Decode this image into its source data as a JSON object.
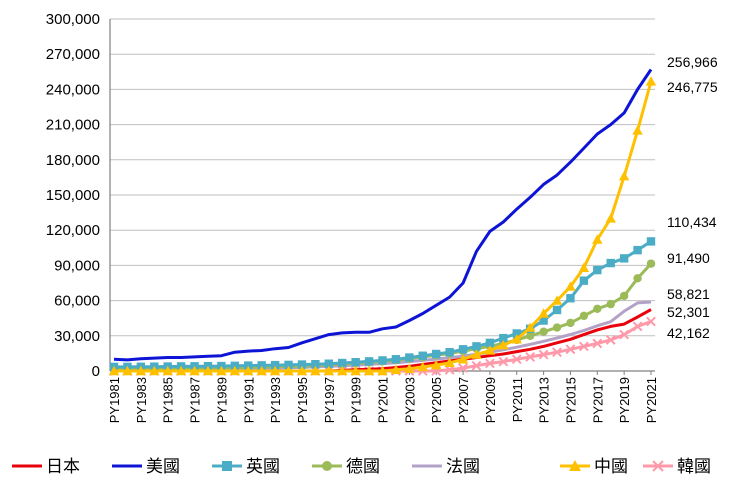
{
  "chart_data": {
    "type": "line",
    "title": "",
    "xlabel": "",
    "ylabel": "",
    "ylim": [
      0,
      300000
    ],
    "yticks": [
      0,
      30000,
      60000,
      90000,
      120000,
      150000,
      180000,
      210000,
      240000,
      270000,
      300000
    ],
    "ytick_labels": [
      "0",
      "30,000",
      "60,000",
      "90,000",
      "120,000",
      "150,000",
      "180,000",
      "210,000",
      "240,000",
      "270,000",
      "300,000"
    ],
    "grid": "horizontal",
    "legend_position": "bottom",
    "x": [
      "PY1981",
      "PY1982",
      "PY1983",
      "PY1984",
      "PY1985",
      "PY1986",
      "PY1987",
      "PY1988",
      "PY1989",
      "PY1990",
      "PY1991",
      "PY1992",
      "PY1993",
      "PY1994",
      "PY1995",
      "PY1996",
      "PY1997",
      "PY1998",
      "PY1999",
      "PY2000",
      "PY2001",
      "PY2002",
      "PY2003",
      "PY2004",
      "PY2005",
      "PY2006",
      "PY2007",
      "PY2008",
      "PY2009",
      "PY2010",
      "PY2011",
      "PY2012",
      "PY2013",
      "PY2014",
      "PY2015",
      "PY2016",
      "PY2017",
      "PY2018",
      "PY2019",
      "PY2020",
      "PY2021"
    ],
    "x_tick_labels": [
      "PY1981",
      "PY1983",
      "PY1985",
      "PY1987",
      "PY1989",
      "PY1991",
      "PY1993",
      "PY1995",
      "PY1997",
      "PY1999",
      "PY2001",
      "PY2003",
      "PY2005",
      "PY2007",
      "PY2009",
      "PY2011",
      "PY2013",
      "PY2015",
      "PY2017",
      "PY2019",
      "PY2021"
    ],
    "series": [
      {
        "name": "日本",
        "color": "#e8000b",
        "marker": "none",
        "values": [
          0,
          0,
          0,
          0,
          0,
          0,
          0,
          0,
          0,
          0,
          0,
          0,
          0,
          0,
          0,
          0,
          0,
          500,
          1000,
          1500,
          2000,
          3000,
          4000,
          5500,
          7000,
          8500,
          10000,
          11500,
          13000,
          14500,
          16500,
          18500,
          21000,
          24000,
          27000,
          31000,
          35000,
          38000,
          40000,
          46000,
          52301
        ]
      },
      {
        "name": "美國",
        "color": "#0d14d6",
        "marker": "none",
        "values": [
          10000,
          9500,
          10500,
          11000,
          11500,
          11500,
          12000,
          12500,
          13000,
          16000,
          17000,
          17500,
          19000,
          20000,
          24000,
          27500,
          31000,
          32500,
          33000,
          33000,
          36000,
          37500,
          43000,
          49000,
          56000,
          63000,
          75000,
          102000,
          119000,
          127000,
          138000,
          148000,
          159000,
          167000,
          178000,
          190000,
          202000,
          210000,
          220000,
          240000,
          256966
        ]
      },
      {
        "name": "英國",
        "color": "#4bacc6",
        "marker": "square",
        "values": [
          3500,
          3500,
          3600,
          3700,
          3800,
          3900,
          4000,
          4100,
          4200,
          4400,
          4600,
          4800,
          5000,
          5200,
          5500,
          5800,
          6200,
          6800,
          7500,
          8200,
          9000,
          10000,
          11500,
          13000,
          14500,
          16000,
          18500,
          21000,
          24000,
          28000,
          32000,
          36000,
          43000,
          52000,
          62000,
          77000,
          86000,
          92000,
          96000,
          103000,
          110434
        ]
      },
      {
        "name": "德國",
        "color": "#9bbb59",
        "marker": "circle",
        "values": [
          2000,
          2000,
          2100,
          2200,
          2300,
          2400,
          2500,
          2600,
          2700,
          2900,
          3100,
          3300,
          3600,
          3900,
          4300,
          4700,
          5200,
          5800,
          6500,
          7300,
          8200,
          9200,
          10500,
          12000,
          13500,
          15000,
          17000,
          19000,
          21000,
          23500,
          26500,
          30000,
          33500,
          37000,
          41000,
          47000,
          53000,
          57000,
          64000,
          79000,
          91490
        ]
      },
      {
        "name": "法國",
        "color": "#b3a2c7",
        "marker": "none",
        "values": [
          1000,
          1000,
          1100,
          1200,
          1300,
          1400,
          1500,
          1600,
          1700,
          1900,
          2100,
          2300,
          2500,
          2800,
          3100,
          3500,
          3900,
          4400,
          5000,
          5600,
          6300,
          7100,
          8000,
          9000,
          10100,
          11300,
          12700,
          14300,
          16100,
          18100,
          20300,
          22700,
          25300,
          28100,
          31100,
          34500,
          38500,
          42000,
          51000,
          58000,
          58821
        ]
      },
      {
        "name": "中國",
        "color": "#ffc000",
        "marker": "triangle",
        "values": [
          0,
          0,
          0,
          0,
          0,
          0,
          0,
          0,
          0,
          0,
          0,
          0,
          0,
          0,
          0,
          0,
          0,
          0,
          0,
          0,
          0,
          1000,
          2000,
          3500,
          5000,
          7000,
          10000,
          14000,
          17500,
          22000,
          27000,
          37000,
          49000,
          60000,
          72000,
          88000,
          112000,
          130000,
          166000,
          205000,
          246775
        ]
      },
      {
        "name": "韓國",
        "color": "#ff99aa",
        "marker": "x",
        "values": [
          0,
          0,
          0,
          0,
          0,
          0,
          0,
          0,
          0,
          0,
          0,
          0,
          0,
          0,
          0,
          0,
          0,
          0,
          0,
          0,
          0,
          0,
          0,
          0,
          0,
          1000,
          2500,
          4500,
          6500,
          8000,
          10000,
          12000,
          14000,
          16000,
          18500,
          21000,
          23500,
          26500,
          31000,
          38000,
          42162
        ]
      }
    ],
    "end_labels": [
      {
        "series": "美國",
        "text": "256,966"
      },
      {
        "series": "中國",
        "text": "246,775"
      },
      {
        "series": "英國",
        "text": "110,434"
      },
      {
        "series": "德國",
        "text": "91,490"
      },
      {
        "series": "法國",
        "text": "58,821"
      },
      {
        "series": "日本",
        "text": "52,301"
      },
      {
        "series": "韓國",
        "text": "42,162"
      }
    ]
  }
}
